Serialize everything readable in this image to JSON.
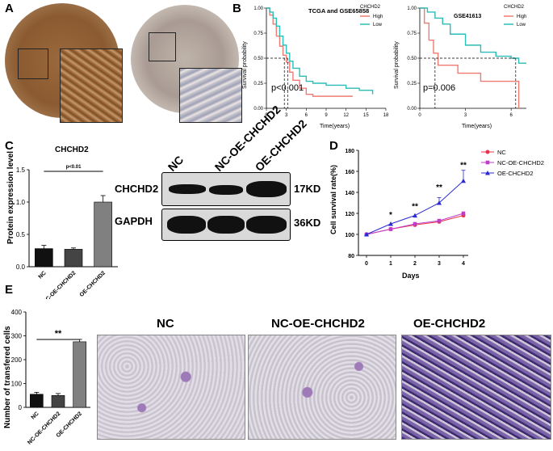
{
  "panels": {
    "A": {
      "letter": "A"
    },
    "B": {
      "letter": "B",
      "plot1": {
        "title": "TCGA  and GSE65858",
        "ylabel": "Survival probability",
        "xlabel": "Time(years)",
        "legend_title": "CHCHD2",
        "legend_items": [
          "High",
          "Low"
        ],
        "pvalue": "p<0.001",
        "xticks": [
          "0",
          "3",
          "6",
          "9",
          "12",
          "15",
          "18"
        ],
        "yticks": [
          "0.00",
          "0.25",
          "0.50",
          "0.75",
          "1.00"
        ]
      },
      "plot2": {
        "title": "GSE41613",
        "ylabel": "Survival probability",
        "xlabel": "Time(years)",
        "legend_title": "CHCHD2",
        "legend_items": [
          "High",
          "Low"
        ],
        "pvalue": "p=0.006",
        "xticks": [
          "0",
          "3",
          "6"
        ],
        "yticks": [
          "0.00",
          "0.25",
          "0.50",
          "0.75",
          "1.00"
        ]
      }
    },
    "C": {
      "letter": "C",
      "title": "CHCHD2",
      "ylabel": "Protein expression level",
      "sig_label": "p<0.01",
      "yticks": [
        "0.0",
        "0.5",
        "1.0",
        "1.5"
      ],
      "blot_lanes": [
        "NC",
        "NC-OE-CHCHD2",
        "OE-CHCHD2"
      ],
      "blot_rows": [
        {
          "name": "CHCHD2",
          "size": "17KD"
        },
        {
          "name": "GAPDH",
          "size": "36KD"
        }
      ]
    },
    "D": {
      "letter": "D",
      "ylabel": "Cell survival rate(%)",
      "xlabel": "Days",
      "yticks": [
        "80",
        "100",
        "120",
        "140",
        "160",
        "180"
      ],
      "xticks": [
        "0",
        "1",
        "2",
        "3",
        "4"
      ],
      "significance": [
        "*",
        "**",
        "**",
        "**"
      ]
    },
    "E": {
      "letter": "E",
      "ylabel": "Number of transfered cells",
      "sig_label": "**",
      "yticks": [
        "0",
        "100",
        "200",
        "300",
        "400"
      ],
      "image_labels": [
        "NC",
        "NC-OE-CHCHD2",
        "OE-CHCHD2"
      ]
    }
  },
  "colors": {
    "high": "#f07b72",
    "low": "#2bbdb7",
    "nc": "#e8334a",
    "nc_oe": "#c03cc8",
    "oe": "#2a2ad4"
  },
  "chart_data": [
    {
      "type": "line",
      "title": "TCGA  and GSE65858",
      "xlabel": "Time(years)",
      "ylabel": "Survival probability",
      "xlim": [
        0,
        18
      ],
      "ylim": [
        0,
        1
      ],
      "series": [
        {
          "name": "High",
          "x": [
            0,
            0.5,
            1,
            1.5,
            2,
            2.5,
            3,
            3.5,
            4,
            5,
            6,
            7,
            9,
            12,
            13
          ],
          "y": [
            1.0,
            0.93,
            0.84,
            0.72,
            0.62,
            0.53,
            0.46,
            0.36,
            0.28,
            0.2,
            0.14,
            0.12,
            0.12,
            0.12,
            0.12
          ]
        },
        {
          "name": "Low",
          "x": [
            0,
            0.5,
            1,
            1.5,
            2,
            2.5,
            3,
            3.5,
            4,
            5,
            6,
            7,
            9,
            12,
            14,
            16
          ],
          "y": [
            1.0,
            0.96,
            0.9,
            0.82,
            0.72,
            0.63,
            0.55,
            0.47,
            0.4,
            0.32,
            0.27,
            0.25,
            0.23,
            0.2,
            0.18,
            0.14
          ]
        }
      ]
    },
    {
      "type": "line",
      "title": "GSE41613",
      "xlabel": "Time(years)",
      "ylabel": "Survival probability",
      "xlim": [
        0,
        7
      ],
      "ylim": [
        0,
        1
      ],
      "series": [
        {
          "name": "High",
          "x": [
            0,
            0.3,
            0.6,
            0.9,
            1.2,
            2.5,
            4,
            6.5,
            6.5
          ],
          "y": [
            1.0,
            0.85,
            0.68,
            0.55,
            0.43,
            0.35,
            0.27,
            0.27,
            0.0
          ]
        },
        {
          "name": "Low",
          "x": [
            0,
            0.5,
            1,
            1.5,
            2,
            3,
            4,
            5,
            6,
            6.5,
            7
          ],
          "y": [
            1.0,
            0.96,
            0.9,
            0.84,
            0.74,
            0.63,
            0.56,
            0.52,
            0.5,
            0.45,
            0.45
          ]
        }
      ]
    },
    {
      "type": "bar",
      "title": "CHCHD2",
      "ylabel": "Protein expression level",
      "categories": [
        "NC",
        "NC-OE-CHCHD2",
        "OE-CHCHD2"
      ],
      "values": [
        0.28,
        0.27,
        1.0
      ],
      "errors": [
        0.05,
        0.02,
        0.1
      ],
      "ylim": [
        0,
        1.5
      ]
    },
    {
      "type": "line",
      "xlabel": "Days",
      "ylabel": "Cell survival rate(%)",
      "x": [
        0,
        1,
        2,
        3,
        4
      ],
      "ylim": [
        80,
        180
      ],
      "series": [
        {
          "name": "NC",
          "values": [
            100,
            105,
            109,
            112,
            118
          ]
        },
        {
          "name": "NC-OE-CHCHD2",
          "values": [
            100,
            105,
            110,
            113,
            120
          ]
        },
        {
          "name": "OE-CHCHD2",
          "values": [
            100,
            110,
            118,
            130,
            151
          ]
        }
      ]
    },
    {
      "type": "bar",
      "ylabel": "Number of transfered cells",
      "categories": [
        "NC",
        "NC-OE-CHCHD2",
        "OE-CHCHD2"
      ],
      "values": [
        55,
        50,
        275
      ],
      "errors": [
        8,
        8,
        10
      ],
      "ylim": [
        0,
        400
      ]
    }
  ]
}
